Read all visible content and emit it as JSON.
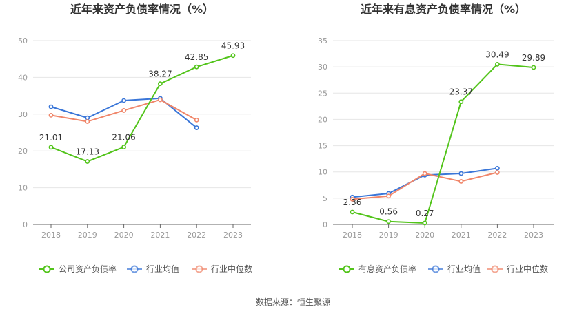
{
  "colors": {
    "primary": "#52c41a",
    "industry_avg": "#3a76d8",
    "industry_median": "#f0866a",
    "axis": "#999999",
    "grid": "#e6e6e6",
    "label": "#333333"
  },
  "source_label": "数据来源：恒生聚源",
  "chart_data": [
    {
      "type": "line",
      "title": "近年来资产负债率情况（%）",
      "x": [
        "2018",
        "2019",
        "2020",
        "2021",
        "2022",
        "2023"
      ],
      "ylim": [
        0,
        50
      ],
      "yticks": [
        0,
        10,
        20,
        30,
        40,
        50
      ],
      "grid": true,
      "legend_position": "bottom",
      "series": [
        {
          "name": "公司资产负债率",
          "color": "#52c41a",
          "values": [
            21.01,
            17.13,
            21.06,
            38.27,
            42.85,
            45.93
          ],
          "labels": [
            "21.01",
            "17.13",
            "21.06",
            "38.27",
            "42.85",
            "45.93"
          ]
        },
        {
          "name": "行业均值",
          "color": "#3a76d8",
          "values": [
            32.0,
            29.0,
            33.7,
            34.3,
            26.3,
            null
          ],
          "labels": null
        },
        {
          "name": "行业中位数",
          "color": "#f0866a",
          "values": [
            29.7,
            28.0,
            31.0,
            33.9,
            28.4,
            null
          ],
          "labels": null
        }
      ]
    },
    {
      "type": "line",
      "title": "近年来有息资产负债率情况（%）",
      "x": [
        "2018",
        "2019",
        "2020",
        "2021",
        "2022",
        "2023"
      ],
      "ylim": [
        0,
        35
      ],
      "yticks": [
        0,
        5,
        10,
        15,
        20,
        25,
        30,
        35
      ],
      "grid": true,
      "legend_position": "bottom",
      "series": [
        {
          "name": "有息资产负债率",
          "color": "#52c41a",
          "values": [
            2.36,
            0.56,
            0.27,
            23.37,
            30.49,
            29.89
          ],
          "labels": [
            "2.36",
            "0.56",
            "0.27",
            "23.37",
            "30.49",
            "29.89"
          ]
        },
        {
          "name": "行业均值",
          "color": "#3a76d8",
          "values": [
            5.2,
            5.9,
            9.4,
            9.7,
            10.7,
            null
          ],
          "labels": null
        },
        {
          "name": "行业中位数",
          "color": "#f0866a",
          "values": [
            4.8,
            5.4,
            9.7,
            8.2,
            9.9,
            null
          ],
          "labels": null
        }
      ]
    }
  ]
}
